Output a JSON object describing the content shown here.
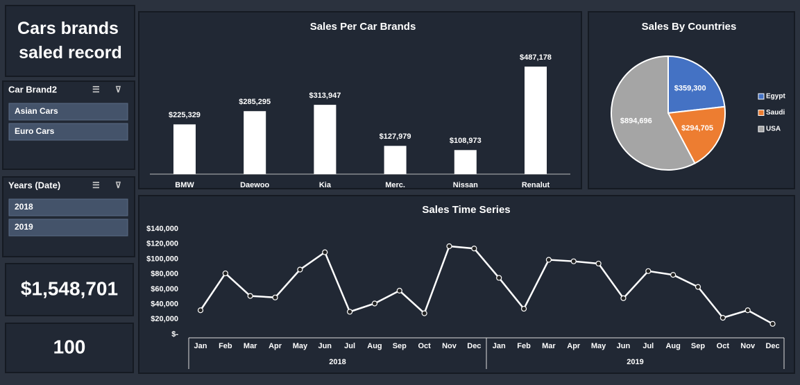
{
  "title": "Cars brands saled record",
  "slicers": [
    {
      "title": "Car Brand2",
      "items": [
        "Asian Cars",
        "Euro Cars"
      ]
    },
    {
      "title": "Years (Date)",
      "items": [
        "2018",
        "2019"
      ]
    }
  ],
  "kpis": {
    "total_sales": "$1,548,701",
    "count": "100"
  },
  "chart_data": [
    {
      "type": "bar",
      "title": "Sales Per Car Brands",
      "categories": [
        "BMW",
        "Daewoo",
        "Kia",
        "Merc.",
        "Nissan",
        "Renalut"
      ],
      "values": [
        225329,
        285295,
        313947,
        127979,
        108973,
        487178
      ],
      "value_labels": [
        "$225,329",
        "$285,295",
        "$313,947",
        "$127,979",
        "$108,973",
        "$487,178"
      ],
      "color": "#ffffff"
    },
    {
      "type": "pie",
      "title": "Sales By Countries",
      "categories": [
        "Egypt",
        "Saudi",
        "USA"
      ],
      "values": [
        359300,
        294705,
        894696
      ],
      "value_labels": [
        "$359,300",
        "$294,705",
        "$894,696"
      ],
      "colors": [
        "#4472c4",
        "#ed7d31",
        "#a5a5a5"
      ],
      "legend": "right"
    },
    {
      "type": "line",
      "title": "Sales Time Series",
      "categories": [
        "Jan",
        "Feb",
        "Mar",
        "Apr",
        "May",
        "Jun",
        "Jul",
        "Aug",
        "Sep",
        "Oct",
        "Nov",
        "Dec",
        "Jan",
        "Feb",
        "Mar",
        "Apr",
        "May",
        "Jun",
        "Jul",
        "Aug",
        "Sep",
        "Oct",
        "Nov",
        "Dec"
      ],
      "category_groups": [
        "2018",
        "2019"
      ],
      "series": [
        {
          "color": "#ffffff",
          "values": [
            32000,
            81000,
            51000,
            49000,
            86000,
            109000,
            30000,
            41000,
            58000,
            28000,
            117000,
            114000,
            75000,
            34000,
            99000,
            97000,
            94000,
            48000,
            84000,
            79000,
            63000,
            22000,
            32000,
            14000
          ]
        }
      ],
      "ylim": [
        0,
        140000
      ],
      "yticks": [
        {
          "value": 0,
          "label": "$-"
        },
        {
          "value": 20000,
          "label": "$20,000"
        },
        {
          "value": 40000,
          "label": "$40,000"
        },
        {
          "value": 60000,
          "label": "$60,000"
        },
        {
          "value": 80000,
          "label": "$80,000"
        },
        {
          "value": 100000,
          "label": "$100,000"
        },
        {
          "value": 120000,
          "label": "$120,000"
        },
        {
          "value": 140000,
          "label": "$140,000"
        }
      ]
    }
  ]
}
